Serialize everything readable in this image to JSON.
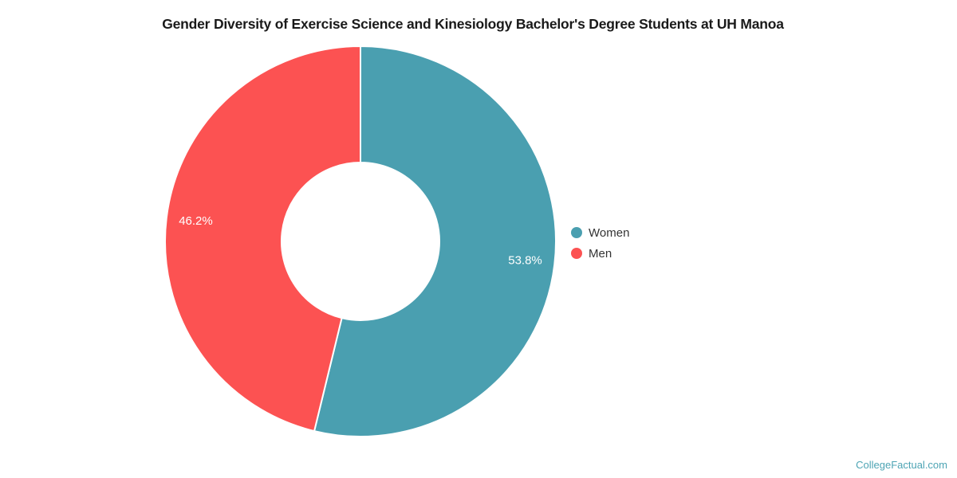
{
  "title": "Gender Diversity of Exercise Science and Kinesiology Bachelor's Degree Students at UH Manoa",
  "watermark": "CollegeFactual.com",
  "colors": {
    "women": "#4A9FB0",
    "men": "#FC5252",
    "watermark": "#4DA4B4",
    "title": "#1A1A1A",
    "slice_divider": "#FFFFFF"
  },
  "legend": {
    "position": "right",
    "items": [
      {
        "label": "Women",
        "color": "#4A9FB0"
      },
      {
        "label": "Men",
        "color": "#FC5252"
      }
    ]
  },
  "chart_data": {
    "type": "pie",
    "donut": true,
    "title": "Gender Diversity of Exercise Science and Kinesiology Bachelor's Degree Students at UH Manoa",
    "labels": [
      "Women",
      "Men"
    ],
    "values": [
      53.8,
      46.2
    ],
    "value_labels": [
      "53.8%",
      "46.2%"
    ],
    "colors": [
      "#4A9FB0",
      "#FC5252"
    ],
    "unit": "%",
    "start_angle_deg": 0,
    "direction": "clockwise",
    "legend_position": "right",
    "grid": false
  }
}
